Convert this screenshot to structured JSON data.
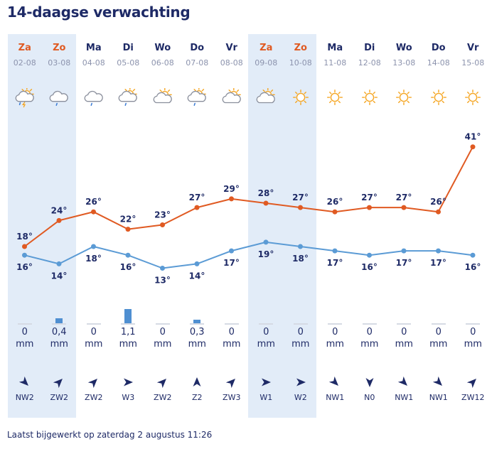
{
  "title": "14-daagse verwachting",
  "footer": "Laatst bijgewerkt op zaterdag 2 augustus 11:26",
  "rain_unit": "mm",
  "colors": {
    "max_line": "#e05a22",
    "min_line": "#5b9bd5",
    "weekend_bg": "#e2ecf8",
    "rain_bar": "#4f8fd1",
    "sun": "#f5a623",
    "cloud": "#8a8f9c"
  },
  "days": [
    {
      "day": "Za",
      "date": "02-08",
      "weekend": true,
      "icon": "thunderstorm-sun-icon",
      "max": "18°",
      "min": "16°",
      "tmax": 18,
      "tmin": 16,
      "rain": "0",
      "rain_mm": 0,
      "wind": "NW2",
      "wind_dir": "NW"
    },
    {
      "day": "Zo",
      "date": "03-08",
      "weekend": true,
      "icon": "cloud-rain-icon",
      "max": "24°",
      "min": "14°",
      "tmax": 24,
      "tmin": 14,
      "rain": "0,4",
      "rain_mm": 0.4,
      "wind": "ZW2",
      "wind_dir": "ZW"
    },
    {
      "day": "Ma",
      "date": "04-08",
      "weekend": false,
      "icon": "cloud-rain-icon",
      "max": "26°",
      "min": "18°",
      "tmax": 26,
      "tmin": 18,
      "rain": "0",
      "rain_mm": 0,
      "wind": "ZW2",
      "wind_dir": "ZW"
    },
    {
      "day": "Di",
      "date": "05-08",
      "weekend": false,
      "icon": "sun-cloud-rain-icon",
      "max": "22°",
      "min": "16°",
      "tmax": 22,
      "tmin": 16,
      "rain": "1,1",
      "rain_mm": 1.1,
      "wind": "W3",
      "wind_dir": "W"
    },
    {
      "day": "Wo",
      "date": "06-08",
      "weekend": false,
      "icon": "partly-cloudy-icon",
      "max": "23°",
      "min": "13°",
      "tmax": 23,
      "tmin": 13,
      "rain": "0",
      "rain_mm": 0,
      "wind": "ZW2",
      "wind_dir": "ZW"
    },
    {
      "day": "Do",
      "date": "07-08",
      "weekend": false,
      "icon": "sun-cloud-rain-icon",
      "max": "27°",
      "min": "14°",
      "tmax": 27,
      "tmin": 14,
      "rain": "0,3",
      "rain_mm": 0.3,
      "wind": "Z2",
      "wind_dir": "Z"
    },
    {
      "day": "Vr",
      "date": "08-08",
      "weekend": false,
      "icon": "partly-cloudy-icon",
      "max": "29°",
      "min": "17°",
      "tmax": 29,
      "tmin": 17,
      "rain": "0",
      "rain_mm": 0,
      "wind": "ZW3",
      "wind_dir": "ZW"
    },
    {
      "day": "Za",
      "date": "09-08",
      "weekend": true,
      "icon": "partly-cloudy-icon",
      "max": "28°",
      "min": "19°",
      "tmax": 28,
      "tmin": 19,
      "rain": "0",
      "rain_mm": 0,
      "wind": "W1",
      "wind_dir": "W"
    },
    {
      "day": "Zo",
      "date": "10-08",
      "weekend": true,
      "icon": "sun-icon",
      "max": "27°",
      "min": "18°",
      "tmax": 27,
      "tmin": 18,
      "rain": "0",
      "rain_mm": 0,
      "wind": "W2",
      "wind_dir": "W"
    },
    {
      "day": "Ma",
      "date": "11-08",
      "weekend": false,
      "icon": "sun-icon",
      "max": "26°",
      "min": "17°",
      "tmax": 26,
      "tmin": 17,
      "rain": "0",
      "rain_mm": 0,
      "wind": "NW1",
      "wind_dir": "NW"
    },
    {
      "day": "Di",
      "date": "12-08",
      "weekend": false,
      "icon": "sun-icon",
      "max": "27°",
      "min": "16°",
      "tmax": 27,
      "tmin": 16,
      "rain": "0",
      "rain_mm": 0,
      "wind": "N0",
      "wind_dir": "N"
    },
    {
      "day": "Wo",
      "date": "13-08",
      "weekend": false,
      "icon": "sun-icon",
      "max": "27°",
      "min": "17°",
      "tmax": 27,
      "tmin": 17,
      "rain": "0",
      "rain_mm": 0,
      "wind": "NW1",
      "wind_dir": "NW"
    },
    {
      "day": "Do",
      "date": "14-08",
      "weekend": false,
      "icon": "sun-icon",
      "max": "26°",
      "min": "17°",
      "tmax": 26,
      "tmin": 17,
      "rain": "0",
      "rain_mm": 0,
      "wind": "NW1",
      "wind_dir": "NW"
    },
    {
      "day": "Vr",
      "date": "15-08",
      "weekend": false,
      "icon": "sun-icon",
      "max": "41°",
      "min": "16°",
      "tmax": 41,
      "tmin": 16,
      "rain": "0",
      "rain_mm": 0,
      "wind": "ZW12",
      "wind_dir": "ZW"
    }
  ]
}
